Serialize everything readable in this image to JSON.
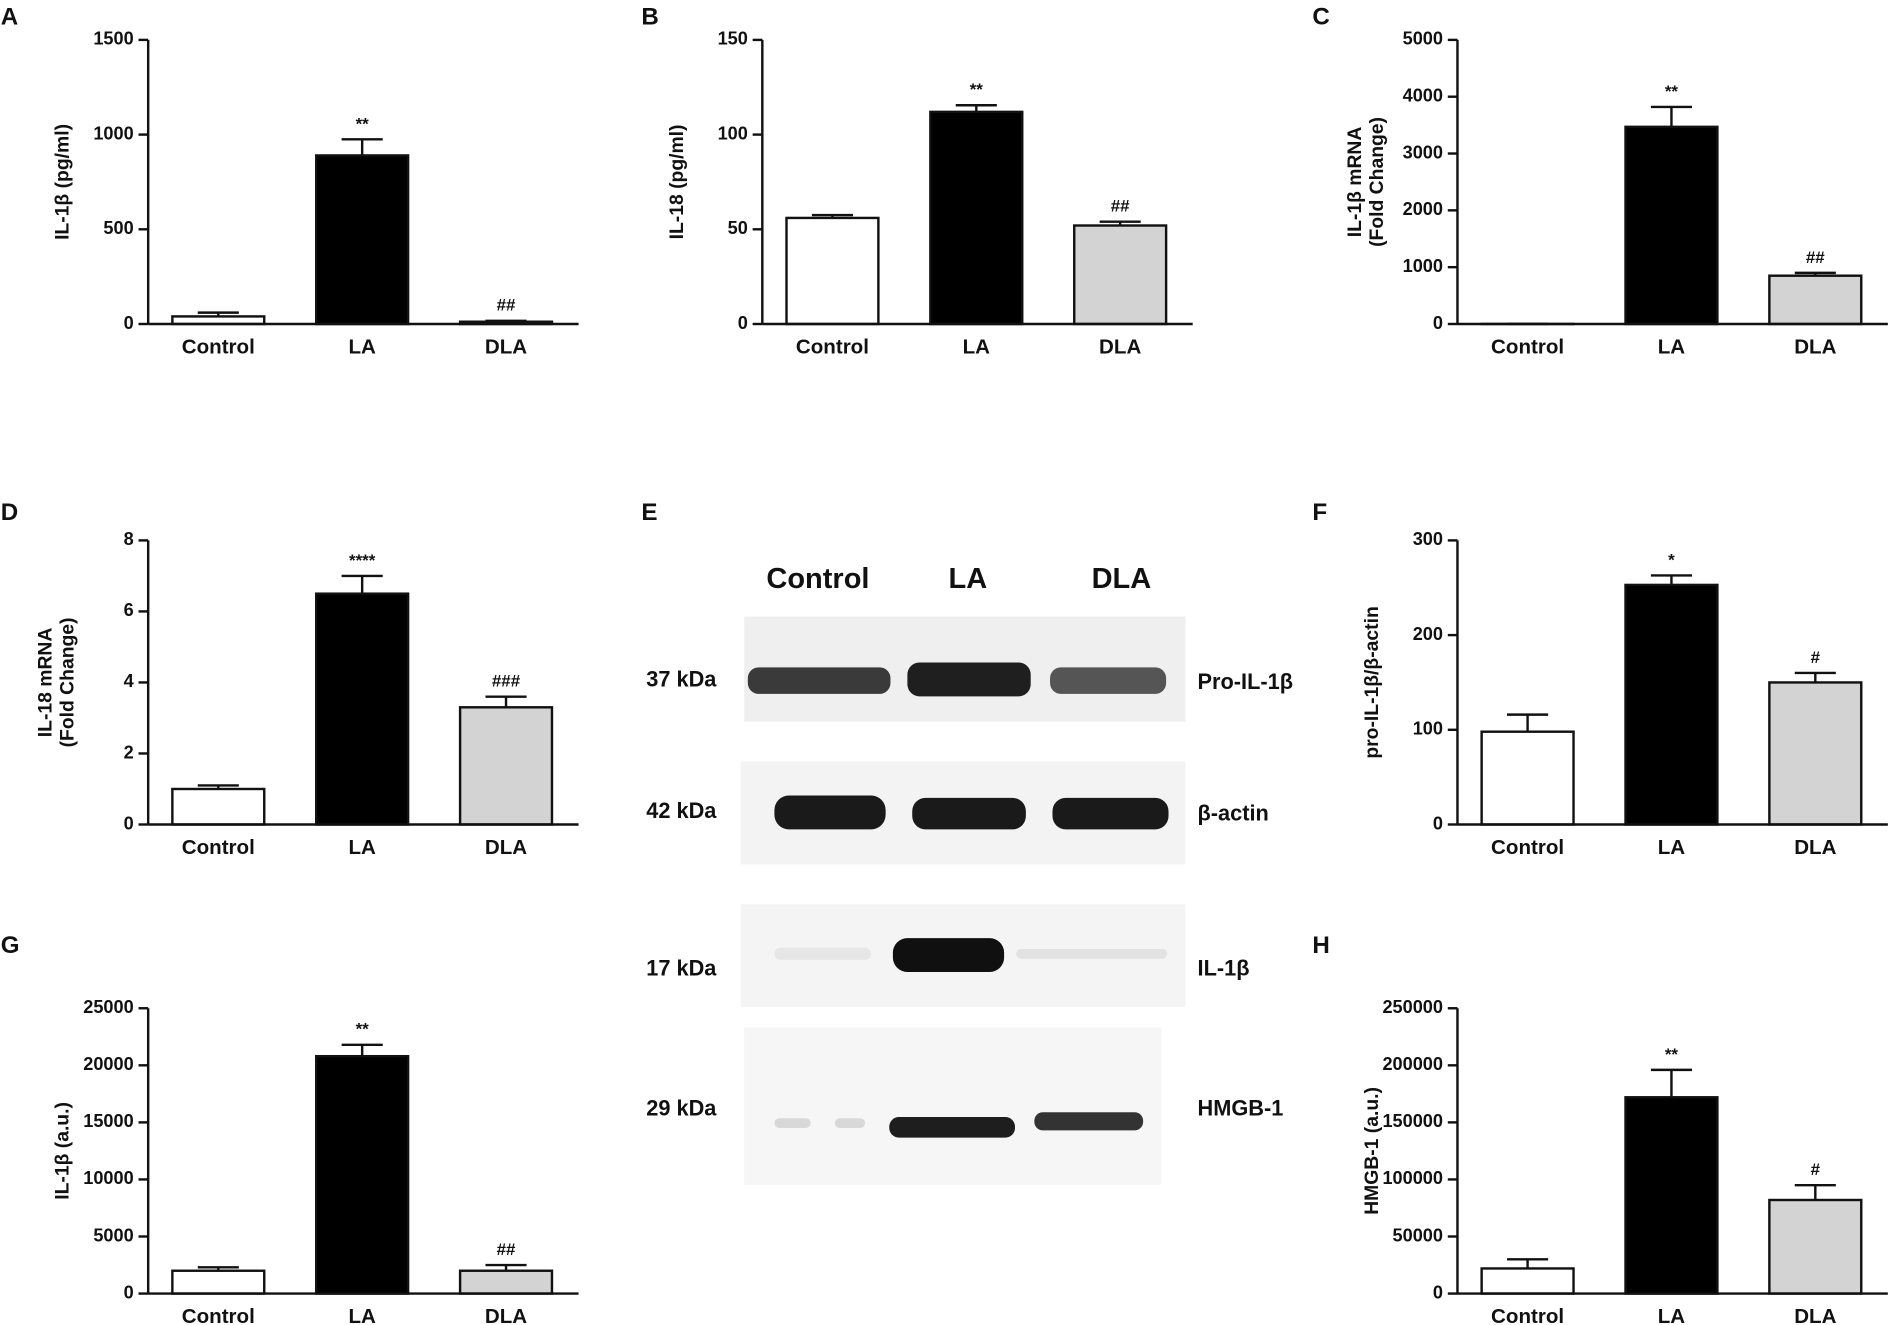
{
  "chart_data": [
    {
      "type": "bar",
      "panel": "A",
      "ylabel": [
        "IL-1β (pg/ml)"
      ],
      "categories": [
        "Control",
        "LA",
        "DLA"
      ],
      "values": [
        40,
        890,
        12
      ],
      "errors": [
        20,
        85,
        5
      ],
      "annotations": [
        null,
        "**",
        "##"
      ],
      "colors": [
        "#ffffff",
        "#000000",
        "#d3d3d3"
      ],
      "ylim": [
        0,
        1500
      ],
      "yticks": [
        0,
        500,
        1000,
        1500
      ]
    },
    {
      "type": "bar",
      "panel": "B",
      "ylabel": [
        "IL-18 (pg/ml)"
      ],
      "categories": [
        "Control",
        "LA",
        "DLA"
      ],
      "values": [
        56,
        112,
        52
      ],
      "errors": [
        1.5,
        3.5,
        2
      ],
      "annotations": [
        null,
        "**",
        "##"
      ],
      "colors": [
        "#ffffff",
        "#000000",
        "#d3d3d3"
      ],
      "ylim": [
        0,
        150
      ],
      "yticks": [
        0,
        50,
        100,
        150
      ]
    },
    {
      "type": "bar",
      "panel": "C",
      "ylabel": [
        "IL-1β mRNA",
        "(Fold Change)"
      ],
      "categories": [
        "Control",
        "LA",
        "DLA"
      ],
      "values": [
        1,
        3470,
        850
      ],
      "errors": [
        0,
        350,
        50
      ],
      "annotations": [
        null,
        "**",
        "##"
      ],
      "colors": [
        "#ffffff",
        "#000000",
        "#d3d3d3"
      ],
      "ylim": [
        0,
        5000
      ],
      "yticks": [
        0,
        1000,
        2000,
        3000,
        4000,
        5000
      ]
    },
    {
      "type": "bar",
      "panel": "D",
      "ylabel": [
        "IL-18 mRNA",
        "(Fold Change)"
      ],
      "categories": [
        "Control",
        "LA",
        "DLA"
      ],
      "values": [
        1.0,
        6.5,
        3.3
      ],
      "errors": [
        0.1,
        0.5,
        0.3
      ],
      "annotations": [
        null,
        "****",
        "###"
      ],
      "colors": [
        "#ffffff",
        "#000000",
        "#d3d3d3"
      ],
      "ylim": [
        0,
        8
      ],
      "yticks": [
        0,
        2,
        4,
        6,
        8
      ]
    },
    {
      "type": "bar",
      "panel": "F",
      "ylabel": [
        "pro-IL-1β/β-actin"
      ],
      "categories": [
        "Control",
        "LA",
        "DLA"
      ],
      "values": [
        98,
        253,
        150
      ],
      "errors": [
        18,
        10,
        10
      ],
      "annotations": [
        null,
        "*",
        "#"
      ],
      "colors": [
        "#ffffff",
        "#000000",
        "#d3d3d3"
      ],
      "ylim": [
        0,
        300
      ],
      "yticks": [
        0,
        100,
        200,
        300
      ]
    },
    {
      "type": "bar",
      "panel": "G",
      "ylabel": [
        "IL-1β (a.u.)"
      ],
      "categories": [
        "Control",
        "LA",
        "DLA"
      ],
      "values": [
        2000,
        20800,
        2000
      ],
      "errors": [
        300,
        1000,
        500
      ],
      "annotations": [
        null,
        "**",
        "##"
      ],
      "colors": [
        "#ffffff",
        "#000000",
        "#d3d3d3"
      ],
      "ylim": [
        0,
        25000
      ],
      "yticks": [
        0,
        5000,
        10000,
        15000,
        20000,
        25000
      ]
    },
    {
      "type": "bar",
      "panel": "H",
      "ylabel": [
        "HMGB-1 (a.u.)"
      ],
      "categories": [
        "Control",
        "LA",
        "DLA"
      ],
      "values": [
        22000,
        172000,
        82000
      ],
      "errors": [
        8000,
        24000,
        13000
      ],
      "annotations": [
        null,
        "**",
        "#"
      ],
      "colors": [
        "#ffffff",
        "#000000",
        "#d3d3d3"
      ],
      "ylim": [
        0,
        250000
      ],
      "yticks": [
        0,
        50000,
        100000,
        150000,
        200000,
        250000
      ]
    }
  ],
  "blot": {
    "panel": "E",
    "lanes": [
      "Control",
      "LA",
      "DLA"
    ],
    "rows": [
      {
        "size": "37 kDa",
        "protein": "Pro-IL-1β"
      },
      {
        "size": "42 kDa",
        "protein": "β-actin"
      },
      {
        "size": "17 kDa",
        "protein": "IL-1β"
      },
      {
        "size": "29 kDa",
        "protein": "HMGB-1"
      }
    ]
  }
}
